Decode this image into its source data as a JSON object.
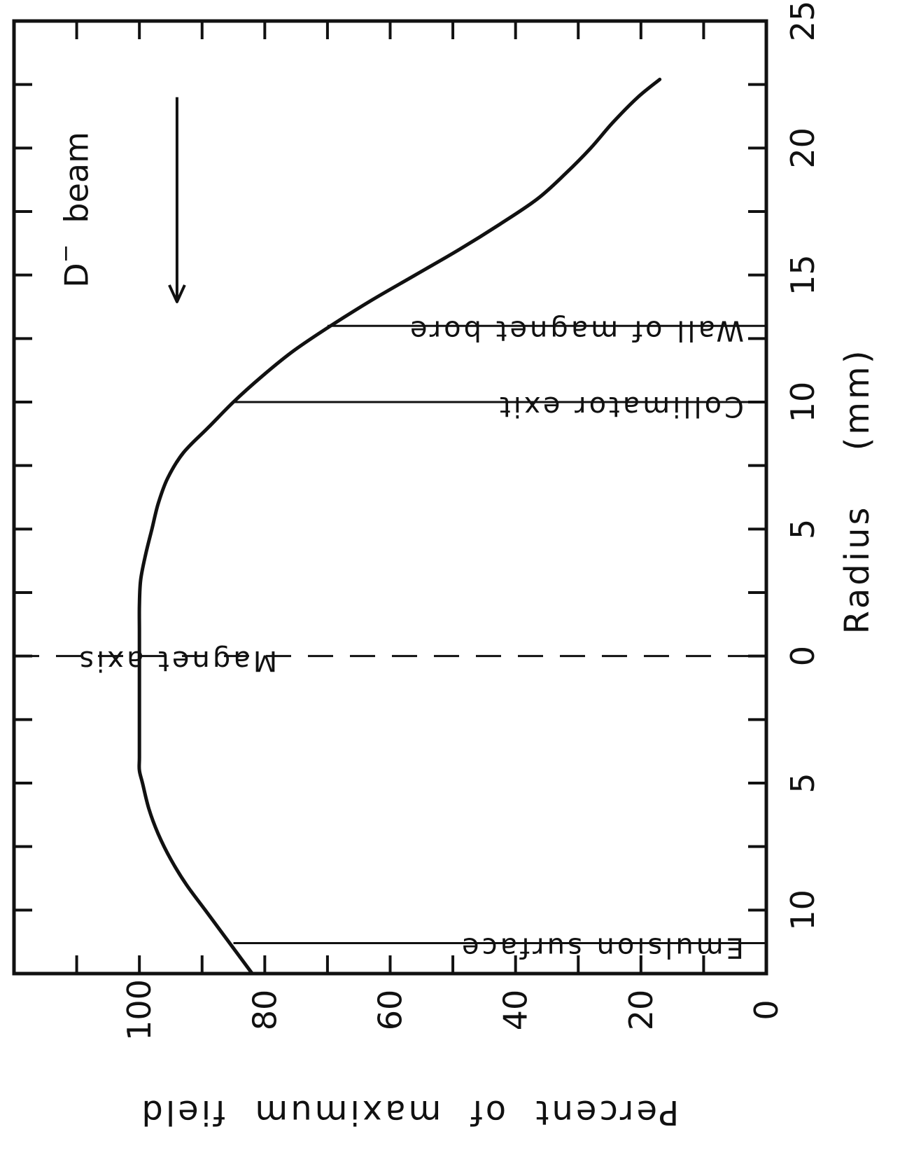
{
  "chart_data": {
    "type": "line",
    "orientation": "rotated-90",
    "xlabel": "Radius    (mm)",
    "ylabel": "Percent  of  maximum  field",
    "x_axis": {
      "range": [
        -12.5,
        25
      ],
      "ticks": [
        -10,
        -5,
        0,
        5,
        10,
        15,
        20,
        25
      ],
      "tick_labels": [
        "10",
        "5",
        "0",
        "5",
        "10",
        "15",
        "20",
        "25"
      ],
      "minor_step": 2.5
    },
    "y_axis": {
      "range": [
        0,
        120
      ],
      "ticks": [
        0,
        20,
        40,
        60,
        80,
        100
      ],
      "tick_labels": [
        "0",
        "20",
        "40",
        "60",
        "80",
        "100"
      ],
      "minor_step": 10
    },
    "series": [
      {
        "x": [
          -12.5,
          -11,
          -10,
          -9,
          -8,
          -7,
          -6,
          -5,
          -4.5,
          -4,
          -3,
          -2,
          -1,
          0,
          1,
          2,
          3,
          4,
          5,
          6,
          7,
          8,
          9,
          10,
          11,
          12,
          13,
          14,
          15,
          16,
          17,
          18,
          19,
          20,
          21,
          22,
          22.7
        ],
        "values": [
          82,
          86.5,
          89.5,
          92.5,
          95,
          97,
          98.5,
          99.5,
          100,
          100,
          100,
          100,
          100,
          100,
          100,
          100,
          99.8,
          99,
          98,
          97,
          95.5,
          93,
          89,
          85,
          80.5,
          75.5,
          69.5,
          63,
          56,
          49,
          42.5,
          36.5,
          32,
          28,
          24.5,
          20.5,
          17
        ]
      }
    ],
    "markers": [
      {
        "x": -11.3,
        "y_from": 0,
        "y_to": 85,
        "style": "solid",
        "label": "Emulsion surface"
      },
      {
        "x": 0,
        "y_from": 0,
        "y_to": 120,
        "style": "dashed",
        "label": "Magnet axis"
      },
      {
        "x": 10,
        "y_from": 0,
        "y_to": 85,
        "style": "solid",
        "label": "Collimator exit"
      },
      {
        "x": 13,
        "y_from": 0,
        "y_to": 70,
        "style": "solid",
        "label": "Wall of magnet bore"
      }
    ],
    "beam_annotation": {
      "label_main": "D",
      "label_sup": "−",
      "label_rest": "beam",
      "arrow_x_from": 22,
      "arrow_x_to": 14,
      "arrow_y": 94
    },
    "grid": false
  }
}
